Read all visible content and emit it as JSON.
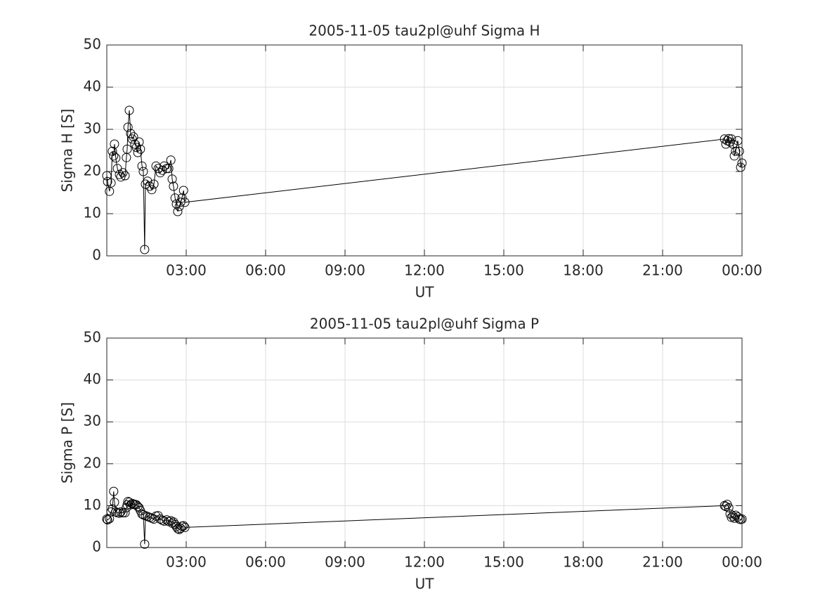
{
  "chart_data": [
    {
      "type": "line",
      "title": "2005-11-05  tau2pl@uhf Sigma H",
      "xlabel": "UT",
      "ylabel": "Sigma H [S]",
      "color": "#000000",
      "grid": true,
      "x": [
        0,
        0.03,
        0.1,
        0.16,
        0.21,
        0.26,
        0.29,
        0.34,
        0.4,
        0.48,
        0.53,
        0.61,
        0.69,
        0.74,
        0.77,
        0.8,
        0.85,
        0.9,
        0.96,
        1.01,
        1.06,
        1.12,
        1.17,
        1.22,
        1.27,
        1.33,
        1.38,
        1.43,
        1.46,
        1.54,
        1.62,
        1.7,
        1.78,
        1.86,
        1.94,
        2.02,
        2.1,
        2.17,
        2.26,
        2.34,
        2.42,
        2.47,
        2.52,
        2.58,
        2.63,
        2.68,
        2.74,
        2.79,
        2.84,
        2.9,
        2.95,
        23.34,
        23.39,
        23.44,
        23.5,
        23.55,
        23.6,
        23.66,
        23.71,
        23.76,
        23.84,
        23.9,
        23.95,
        24.0
      ],
      "values": [
        19,
        17.6,
        15.3,
        17.3,
        24.8,
        23.7,
        26.5,
        23.2,
        20.7,
        19.3,
        18.7,
        19.7,
        19,
        23.3,
        25.3,
        30.5,
        34.5,
        29,
        27.7,
        28.2,
        26.5,
        25.7,
        24.5,
        27,
        25.3,
        21.3,
        20,
        1.5,
        17,
        17.7,
        16.5,
        15.7,
        17,
        21.3,
        20.7,
        19.7,
        20.3,
        21.3,
        20.7,
        20.7,
        22.7,
        18.2,
        16.5,
        13.7,
        12.3,
        10.5,
        11.7,
        12.7,
        13.7,
        15.5,
        12.7,
        27.7,
        26.5,
        27.3,
        27.8,
        27,
        27.7,
        26.5,
        23.7,
        24.8,
        27.3,
        24.8,
        21,
        22
      ],
      "xlim": [
        0,
        24
      ],
      "xticks": [
        {
          "value": 3,
          "label": "03:00"
        },
        {
          "value": 6,
          "label": "06:00"
        },
        {
          "value": 9,
          "label": "09:00"
        },
        {
          "value": 12,
          "label": "12:00"
        },
        {
          "value": 15,
          "label": "15:00"
        },
        {
          "value": 18,
          "label": "18:00"
        },
        {
          "value": 21,
          "label": "21:00"
        },
        {
          "value": 24,
          "label": "00:00"
        }
      ],
      "ylim": [
        0,
        50
      ],
      "yticks": [
        0,
        10,
        20,
        30,
        40,
        50
      ]
    },
    {
      "type": "line",
      "title": "2005-11-05  tau2pl@uhf Sigma P",
      "xlabel": "UT",
      "ylabel": "Sigma P [S]",
      "color": "#000000",
      "grid": true,
      "x": [
        0,
        0.03,
        0.1,
        0.16,
        0.21,
        0.26,
        0.29,
        0.34,
        0.4,
        0.48,
        0.53,
        0.61,
        0.69,
        0.74,
        0.77,
        0.8,
        0.85,
        0.9,
        0.96,
        1.01,
        1.06,
        1.12,
        1.17,
        1.22,
        1.27,
        1.33,
        1.38,
        1.43,
        1.46,
        1.54,
        1.62,
        1.7,
        1.78,
        1.86,
        1.94,
        2.02,
        2.1,
        2.17,
        2.26,
        2.34,
        2.42,
        2.47,
        2.52,
        2.58,
        2.63,
        2.68,
        2.74,
        2.79,
        2.84,
        2.9,
        2.95,
        23.34,
        23.39,
        23.44,
        23.5,
        23.55,
        23.6,
        23.66,
        23.71,
        23.76,
        23.84,
        23.9,
        23.95,
        24.0
      ],
      "values": [
        6.8,
        6.6,
        6.9,
        8.5,
        9.2,
        13.4,
        10.8,
        8.5,
        8.3,
        8.2,
        8.5,
        8.3,
        8.3,
        9.5,
        10.2,
        11,
        10.8,
        10.2,
        10.5,
        10.3,
        10.3,
        10.2,
        9.8,
        9.5,
        8.8,
        8,
        7.8,
        0.8,
        7.6,
        7.4,
        7.2,
        7.0,
        6.8,
        7.5,
        7.6,
        6.8,
        6.5,
        6.3,
        6.6,
        6.2,
        6.4,
        5.8,
        6.1,
        5.5,
        5.0,
        4.5,
        4.3,
        4.6,
        5.1,
        5.2,
        4.8,
        10,
        9.8,
        10.3,
        9.5,
        8,
        7.2,
        7.5,
        7,
        7.7,
        7.3,
        6.8,
        6.7,
        6.8
      ],
      "xlim": [
        0,
        24
      ],
      "xticks": [
        {
          "value": 3,
          "label": "03:00"
        },
        {
          "value": 6,
          "label": "06:00"
        },
        {
          "value": 9,
          "label": "09:00"
        },
        {
          "value": 12,
          "label": "12:00"
        },
        {
          "value": 15,
          "label": "15:00"
        },
        {
          "value": 18,
          "label": "18:00"
        },
        {
          "value": 21,
          "label": "21:00"
        },
        {
          "value": 24,
          "label": "00:00"
        }
      ],
      "ylim": [
        0,
        50
      ],
      "yticks": [
        0,
        10,
        20,
        30,
        40,
        50
      ]
    }
  ]
}
